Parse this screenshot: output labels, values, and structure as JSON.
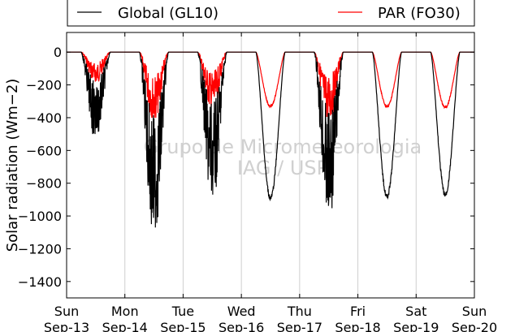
{
  "chart_data": {
    "type": "line",
    "ylabel": "Solar radiation (Wm−2)",
    "ylim": [
      -1500,
      120
    ],
    "y_ticks": [
      0,
      -200,
      -400,
      -600,
      -800,
      -1000,
      -1200,
      -1400
    ],
    "x_ticks": [
      {
        "day": "Sun",
        "date": "Sep-13"
      },
      {
        "day": "Mon",
        "date": "Sep-14"
      },
      {
        "day": "Tue",
        "date": "Sep-15"
      },
      {
        "day": "Wed",
        "date": "Sep-16"
      },
      {
        "day": "Thu",
        "date": "Sep-17"
      },
      {
        "day": "Fri",
        "date": "Sep-18"
      },
      {
        "day": "Sat",
        "date": "Sep-19"
      },
      {
        "day": "Sun",
        "date": "Sep-20"
      }
    ],
    "grid": "vertical",
    "legend_position": "top",
    "watermark": [
      "Grupo de Micrometeorologia",
      "IAG / USP"
    ],
    "series": [
      {
        "name": "Global (GL10)",
        "color": "#000000",
        "daily_min": [
          -500,
          -1070,
          -870,
          -900,
          -970,
          -890,
          -880
        ],
        "noisy": [
          true,
          true,
          true,
          false,
          true,
          false,
          false
        ]
      },
      {
        "name": "PAR (FO30)",
        "color": "#ff0000",
        "daily_min": [
          -180,
          -400,
          -335,
          -335,
          -395,
          -335,
          -340
        ],
        "noisy": [
          true,
          true,
          true,
          false,
          true,
          false,
          false
        ]
      }
    ]
  }
}
